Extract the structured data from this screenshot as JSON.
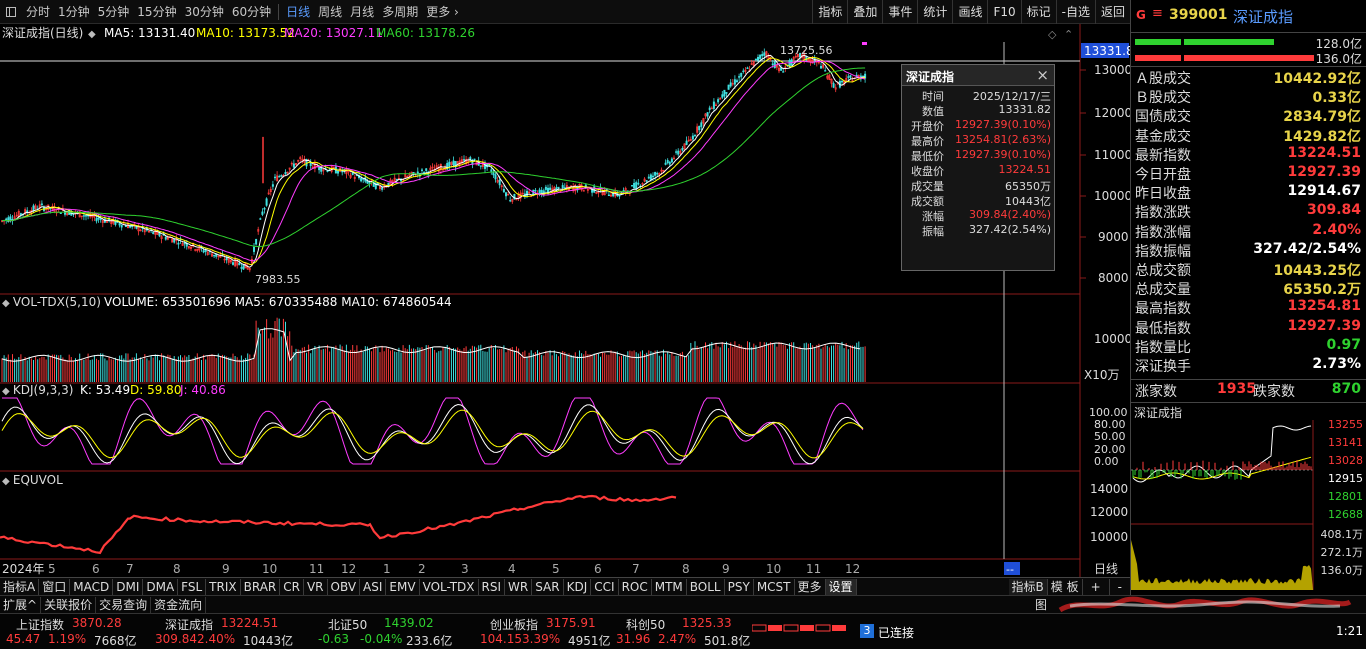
{
  "topbar": {
    "menu_icon": "menu-square-icon",
    "periods": [
      "分时",
      "1分钟",
      "5分钟",
      "15分钟",
      "30分钟",
      "60分钟",
      "日线",
      "周线",
      "月线",
      "多周期",
      "更多"
    ],
    "active_period": "日线",
    "more_chevron": "chevron-right-icon",
    "right_buttons": [
      "指标",
      "叠加",
      "事件",
      "统计",
      "画线",
      "F10",
      "标记",
      "-自选",
      "返回"
    ]
  },
  "main_chart": {
    "title": "深证成指(日线)",
    "ma_labels": {
      "ma5": "MA5: 13131.40",
      "ma10": "MA10: 13173.52",
      "ma20": "MA20: 13027.11",
      "ma60": "MA60: 13178.26"
    },
    "y_ticks": [
      "13000",
      "12000",
      "11000",
      "10000",
      "9000",
      "8000"
    ],
    "current_price_label": "13331.8",
    "high_label": "13725.56",
    "low_label": "7983.55",
    "colors": {
      "up": "#ff3b3b",
      "down": "#3fe0e0",
      "ma5": "#ffffff",
      "ma10": "#ffff00",
      "ma20": "#ff3cff",
      "ma60": "#2fd22f"
    }
  },
  "volume_panel": {
    "title": "VOL-TDX(5,10)",
    "values": "VOLUME: 653501696  MA5: 670335488  MA10: 674860544",
    "y_ticks": [
      "10000"
    ],
    "unit": "X10万"
  },
  "kdj_panel": {
    "title": "KDJ(9,3,3)",
    "k": "K: 53.49",
    "d": "D: 59.80",
    "j": "J: 40.86",
    "y_ticks": [
      "100.00",
      "80.00",
      "50.00",
      "20.00",
      "0.00"
    ]
  },
  "equvol_panel": {
    "title": "EQUVOL",
    "y_ticks": [
      "14000",
      "12000",
      "10000"
    ]
  },
  "x_axis": {
    "labels": [
      "2024年",
      "5",
      "6",
      "7",
      "8",
      "9",
      "10",
      "11",
      "12",
      "1",
      "2",
      "3",
      "4",
      "5",
      "6",
      "7",
      "8",
      "9",
      "10",
      "11",
      "12"
    ],
    "right_label": "日线",
    "cursor_marker": "--"
  },
  "popup": {
    "title": "深证成指",
    "rows": [
      {
        "label": "时间",
        "value": "2025/12/17/三",
        "color": "#dddddd"
      },
      {
        "label": "数值",
        "value": "13331.82",
        "color": "#dddddd"
      },
      {
        "label": "开盘价",
        "value": "12927.39(0.10%)",
        "color": "#ff3b3b"
      },
      {
        "label": "最高价",
        "value": "13254.81(2.63%)",
        "color": "#ff3b3b"
      },
      {
        "label": "最低价",
        "value": "12927.39(0.10%)",
        "color": "#ff3b3b"
      },
      {
        "label": "收盘价",
        "value": "13224.51",
        "color": "#ff3b3b"
      },
      {
        "label": "成交量",
        "value": "65350万",
        "color": "#dddddd"
      },
      {
        "label": "成交额",
        "value": "10443亿",
        "color": "#dddddd"
      },
      {
        "label": "涨幅",
        "value": "309.84(2.40%)",
        "color": "#ff3b3b"
      },
      {
        "label": "振幅",
        "value": "327.42(2.54%)",
        "color": "#dddddd"
      }
    ]
  },
  "bottom_tabs": [
    "指标A",
    "窗口",
    "MACD",
    "DMI",
    "DMA",
    "FSL",
    "TRIX",
    "BRAR",
    "CR",
    "VR",
    "OBV",
    "ASI",
    "EMV",
    "VOL-TDX",
    "RSI",
    "WR",
    "SAR",
    "KDJ",
    "CCI",
    "ROC",
    "MTM",
    "BOLL",
    "PSY",
    "MCST",
    "更多",
    "设置"
  ],
  "bottom_right": {
    "tab": "指标B",
    "mode": "模 板",
    "plus": "+",
    "minus": "-"
  },
  "row2_tabs": [
    "扩展^",
    "关联报价",
    "交易查询",
    "资金流向"
  ],
  "row2_right": "图",
  "right_panel": {
    "header": {
      "badge": "G",
      "code": "399001",
      "name": "深证成指"
    },
    "ratio_top": "128.0亿",
    "ratio_bottom": "136.0亿",
    "stats": [
      {
        "label": "Ａ股成交",
        "value": "10442.92亿",
        "color": "#e8d44a"
      },
      {
        "label": "Ｂ股成交",
        "value": "0.33亿",
        "color": "#e8d44a"
      },
      {
        "label": "国债成交",
        "value": "2834.79亿",
        "color": "#e8d44a"
      },
      {
        "label": "基金成交",
        "value": "1429.82亿",
        "color": "#e8d44a"
      },
      {
        "label": "最新指数",
        "value": "13224.51",
        "color": "#ff3b3b"
      },
      {
        "label": "今日开盘",
        "value": "12927.39",
        "color": "#ff3b3b"
      },
      {
        "label": "昨日收盘",
        "value": "12914.67",
        "color": "#ffffff"
      },
      {
        "label": "指数涨跌",
        "value": "309.84",
        "color": "#ff3b3b"
      },
      {
        "label": "指数涨幅",
        "value": "2.40%",
        "color": "#ff3b3b"
      },
      {
        "label": "指数振幅",
        "value": "327.42/2.54%",
        "color": "#ffffff"
      },
      {
        "label": "总成交额",
        "value": "10443.25亿",
        "color": "#e8d44a"
      },
      {
        "label": "总成交量",
        "value": "65350.2万",
        "color": "#e8d44a"
      },
      {
        "label": "最高指数",
        "value": "13254.81",
        "color": "#ff3b3b"
      },
      {
        "label": "最低指数",
        "value": "12927.39",
        "color": "#ff3b3b"
      },
      {
        "label": "指数量比",
        "value": "0.97",
        "color": "#2fd22f"
      },
      {
        "label": "深证换手",
        "value": "2.73%",
        "color": "#ffffff"
      }
    ],
    "updown": {
      "up_label": "涨家数",
      "up_value": "1935",
      "down_label": "跌家数",
      "down_value": "870"
    },
    "mini_chart": {
      "title": "深证成指",
      "y_ticks": [
        "13255",
        "13141",
        "13028",
        "12915",
        "12801",
        "12688"
      ],
      "vol_ticks": [
        "408.1万",
        "272.1万",
        "136.0万"
      ],
      "y_colors": [
        "#ff3b3b",
        "#ff3b3b",
        "#ff3b3b",
        "#ffffff",
        "#2fd22f",
        "#2fd22f"
      ]
    }
  },
  "status_bar": {
    "indices": [
      {
        "name": "上证指数",
        "price": "3870.28",
        "chg": "45.47",
        "pct": "1.19%",
        "amt": "7668亿",
        "color": "#ff3b3b"
      },
      {
        "name": "深证成指",
        "price": "13224.51",
        "chg": "309.84",
        "pct": "2.40%",
        "amt": "10443亿",
        "color": "#ff3b3b"
      },
      {
        "name": "北证50",
        "price": "1439.02",
        "chg": "-0.63",
        "pct": "-0.04%",
        "amt": "233.6亿",
        "color": "#2fd22f"
      },
      {
        "name": "创业板指",
        "price": "3175.91",
        "chg": "104.15",
        "pct": "3.39%",
        "amt": "4951亿",
        "color": "#ff3b3b"
      },
      {
        "name": "科创50",
        "price": "1325.33",
        "chg": "31.96",
        "pct": "2.47%",
        "amt": "501.8亿",
        "color": "#ff3b3b"
      }
    ],
    "connection_badge": "3",
    "connection_text": "已连接",
    "clock_partial": "1:21"
  }
}
